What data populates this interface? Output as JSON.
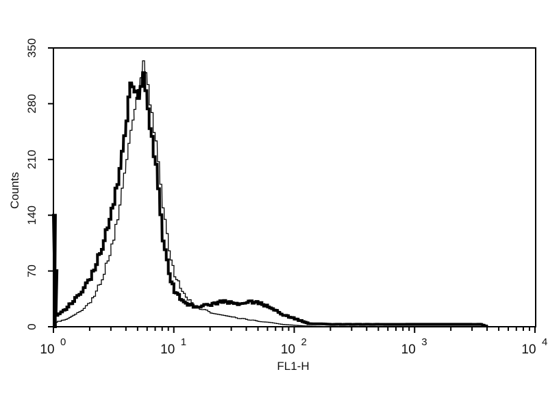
{
  "chart_data": {
    "type": "line",
    "title": "",
    "xlabel": "FL1-H",
    "ylabel": "Counts",
    "xscale": "log",
    "xlim": [
      1,
      10000
    ],
    "ylim": [
      0,
      350
    ],
    "grid": false,
    "x_ticks": [
      {
        "base": "10",
        "exp": "0",
        "value": 1
      },
      {
        "base": "10",
        "exp": "1",
        "value": 10
      },
      {
        "base": "10",
        "exp": "2",
        "value": 100
      },
      {
        "base": "10",
        "exp": "3",
        "value": 1000
      },
      {
        "base": "10",
        "exp": "4",
        "value": 10000
      }
    ],
    "y_ticks": [
      "0",
      "70",
      "140",
      "210",
      "280",
      "350"
    ],
    "series": [
      {
        "style": "thick",
        "color": "#000000",
        "x": [
          1.0,
          1.0,
          1.03,
          1.05,
          1.2,
          1.5,
          2.0,
          2.5,
          3.0,
          3.5,
          4.0,
          4.3,
          4.5,
          5.0,
          5.5,
          6.0,
          7.0,
          8.0,
          9.0,
          10,
          12,
          15,
          20,
          25,
          30,
          35,
          40,
          50,
          60,
          70,
          80,
          100,
          130,
          200,
          500,
          1000,
          2000,
          3500,
          4000
        ],
        "y": [
          0,
          140,
          70,
          15,
          20,
          35,
          60,
          100,
          145,
          195,
          260,
          310,
          300,
          290,
          315,
          270,
          200,
          110,
          65,
          45,
          30,
          25,
          28,
          32,
          30,
          28,
          32,
          30,
          25,
          20,
          15,
          10,
          4,
          3,
          3,
          3,
          3,
          3,
          0
        ]
      },
      {
        "style": "thin",
        "color": "#000000",
        "x": [
          1.0,
          1.3,
          1.5,
          2.0,
          2.5,
          3.0,
          3.5,
          4.0,
          4.5,
          5.0,
          5.5,
          6.0,
          7.0,
          8.0,
          9.0,
          10,
          12,
          15,
          20,
          30,
          50,
          80,
          120,
          200
        ],
        "y": [
          5,
          10,
          15,
          30,
          60,
          100,
          150,
          210,
          260,
          300,
          330,
          300,
          230,
          150,
          95,
          65,
          40,
          25,
          18,
          12,
          7,
          3,
          1,
          0
        ]
      }
    ]
  }
}
